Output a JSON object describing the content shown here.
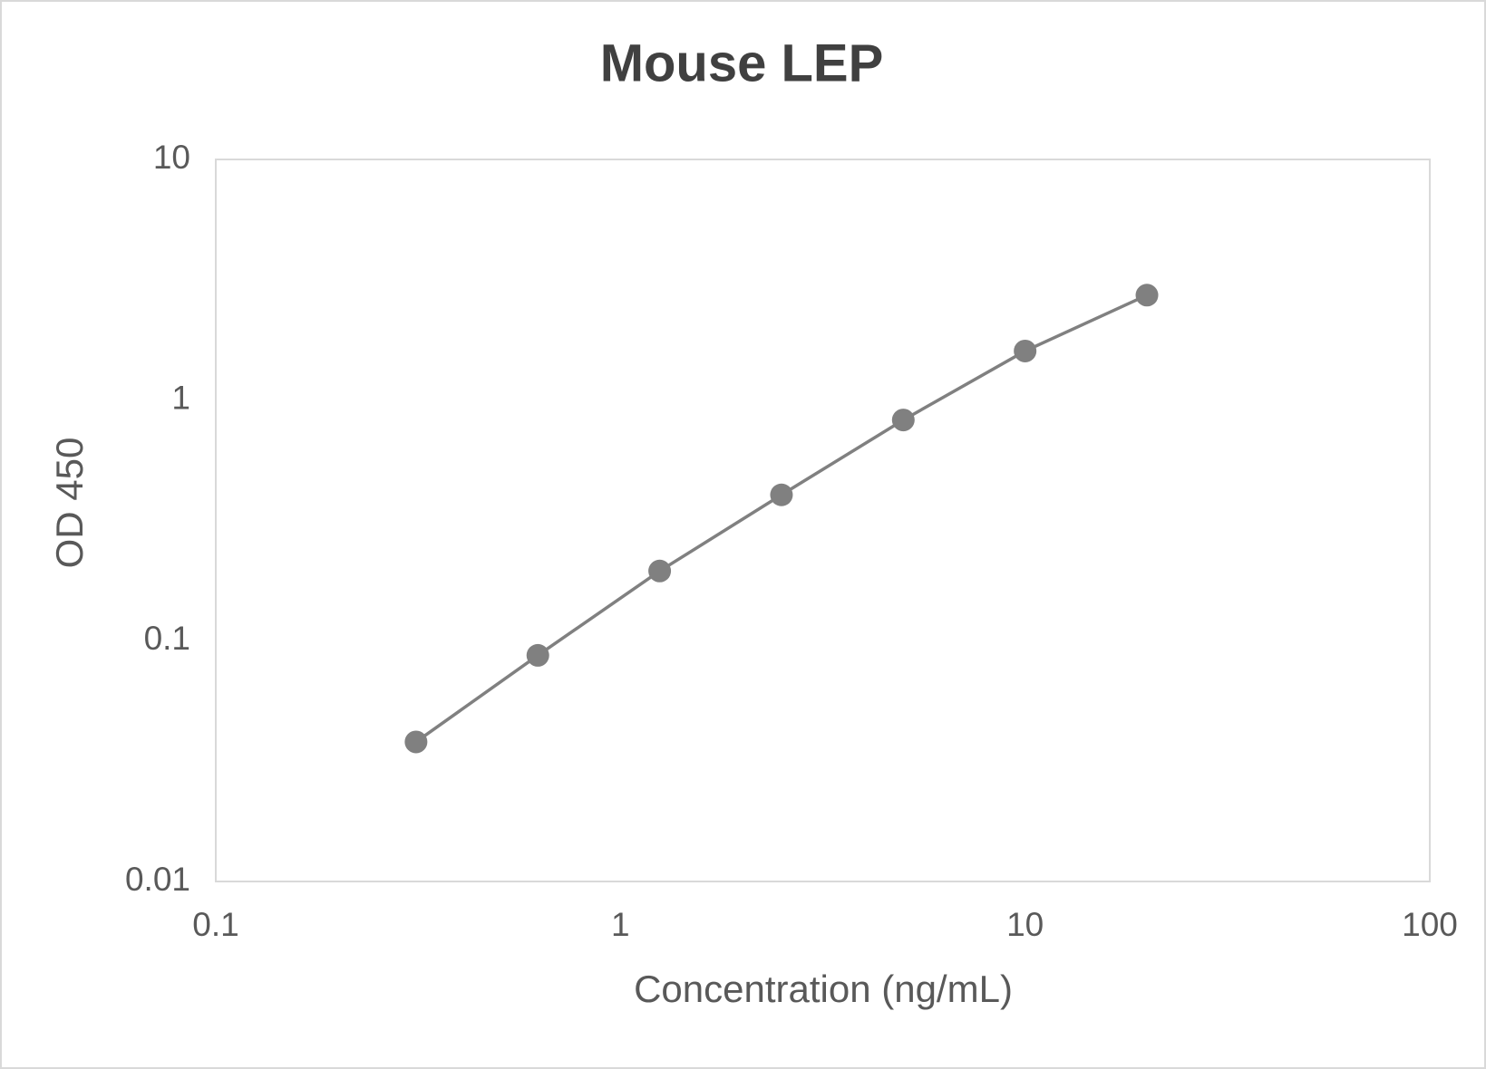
{
  "chart_data": {
    "type": "line",
    "title": "Mouse LEP",
    "x_label": "Concentration (ng/mL)",
    "y_label": "OD 450",
    "x_scale": "log",
    "y_scale": "log",
    "x": [
      0.3125,
      0.625,
      1.25,
      2.5,
      5,
      10,
      20
    ],
    "series": [
      {
        "name": "Mouse LEP",
        "color": "#808080",
        "values": [
          0.038,
          0.087,
          0.195,
          0.404,
          0.827,
          1.6,
          2.73
        ]
      }
    ],
    "xlim": [
      0.1,
      100
    ],
    "xticks": [
      0.1,
      1,
      10,
      100
    ],
    "ylim": [
      0.01,
      10
    ],
    "yticks": [
      0.01,
      0.1,
      1,
      10
    ],
    "grid": false,
    "markers": true
  }
}
